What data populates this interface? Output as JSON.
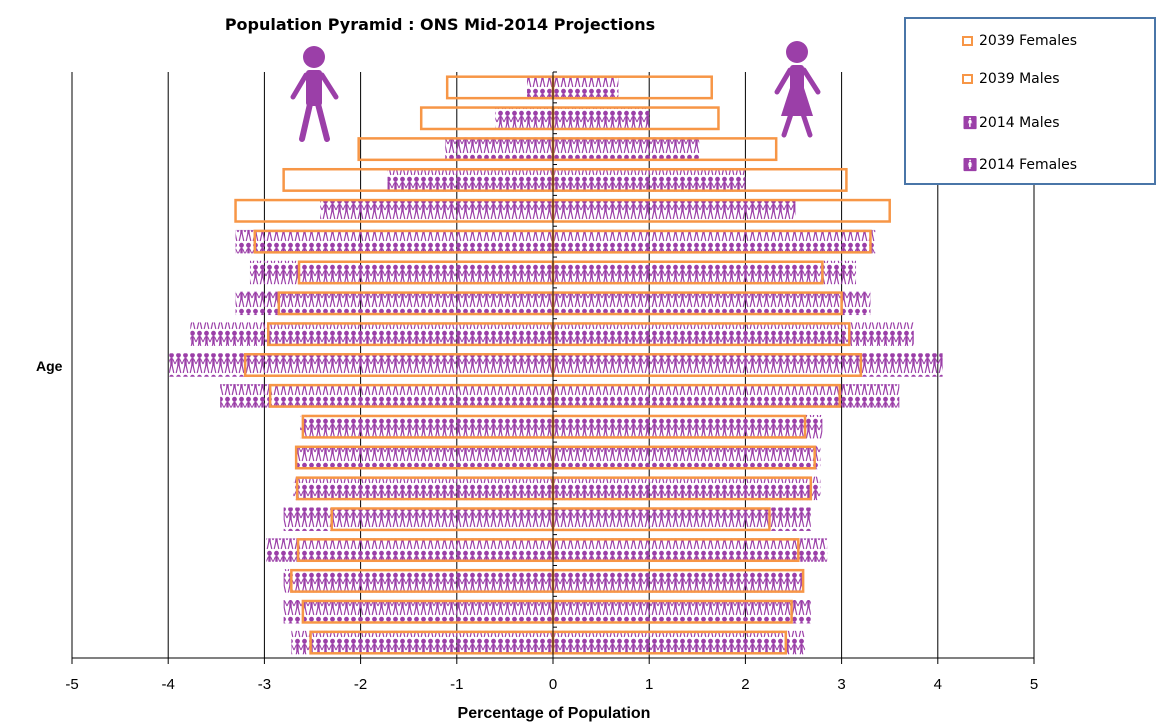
{
  "chart_data": {
    "type": "bar",
    "title": "Population Pyramid :  ONS Mid-2014 Projections",
    "xlabel": "Percentage of Population",
    "ylabel": "Age",
    "xlim": [
      -5,
      5
    ],
    "xticks": [
      "-5",
      "-4",
      "-3",
      "-2",
      "-1",
      "0",
      "1",
      "2",
      "3",
      "4",
      "5"
    ],
    "grid": "vertical",
    "legend_position": "top-right",
    "series": [
      {
        "name": "2039 Females",
        "style": "outline",
        "color": "#f79646",
        "values": [
          1.65,
          1.72,
          2.32,
          3.05,
          3.5,
          3.3,
          2.8,
          3.0,
          3.08,
          3.2,
          2.98,
          2.62,
          2.72,
          2.68,
          2.25,
          2.55,
          2.6,
          2.48,
          2.42
        ]
      },
      {
        "name": "2039 Males",
        "style": "outline",
        "color": "#f79646",
        "values": [
          -1.1,
          -1.37,
          -2.02,
          -2.8,
          -3.3,
          -3.1,
          -2.64,
          -2.85,
          -2.96,
          -3.2,
          -2.94,
          -2.6,
          -2.67,
          -2.66,
          -2.3,
          -2.65,
          -2.72,
          -2.6,
          -2.52
        ]
      },
      {
        "name": "2014 Males",
        "style": "pictogram",
        "color": "#9b3fa8",
        "values": [
          -0.27,
          -0.6,
          -1.12,
          -1.72,
          -2.42,
          -3.3,
          -3.15,
          -3.3,
          -3.77,
          -3.99,
          -3.46,
          -2.63,
          -2.68,
          -2.7,
          -2.8,
          -2.98,
          -2.8,
          -2.8,
          -2.72
        ]
      },
      {
        "name": "2014 Females",
        "style": "pictogram",
        "color": "#9b3fa8",
        "values": [
          0.68,
          1.0,
          1.52,
          2.0,
          2.52,
          3.35,
          3.15,
          3.3,
          3.75,
          4.05,
          3.6,
          2.8,
          2.78,
          2.78,
          2.68,
          2.85,
          2.6,
          2.68,
          2.62
        ]
      }
    ]
  },
  "legend": {
    "items": [
      {
        "label": "2039 Females",
        "marker": "outline-square",
        "color": "#f79646"
      },
      {
        "label": "2039 Males",
        "marker": "outline-square",
        "color": "#f79646"
      },
      {
        "label": "2014 Males",
        "marker": "figure",
        "color": "#9b3fa8"
      },
      {
        "label": "2014 Females",
        "marker": "figure",
        "color": "#9b3fa8"
      }
    ]
  },
  "icons": {
    "left": "male-figure-icon",
    "right": "female-figure-icon",
    "color": "#9b3fa8"
  }
}
